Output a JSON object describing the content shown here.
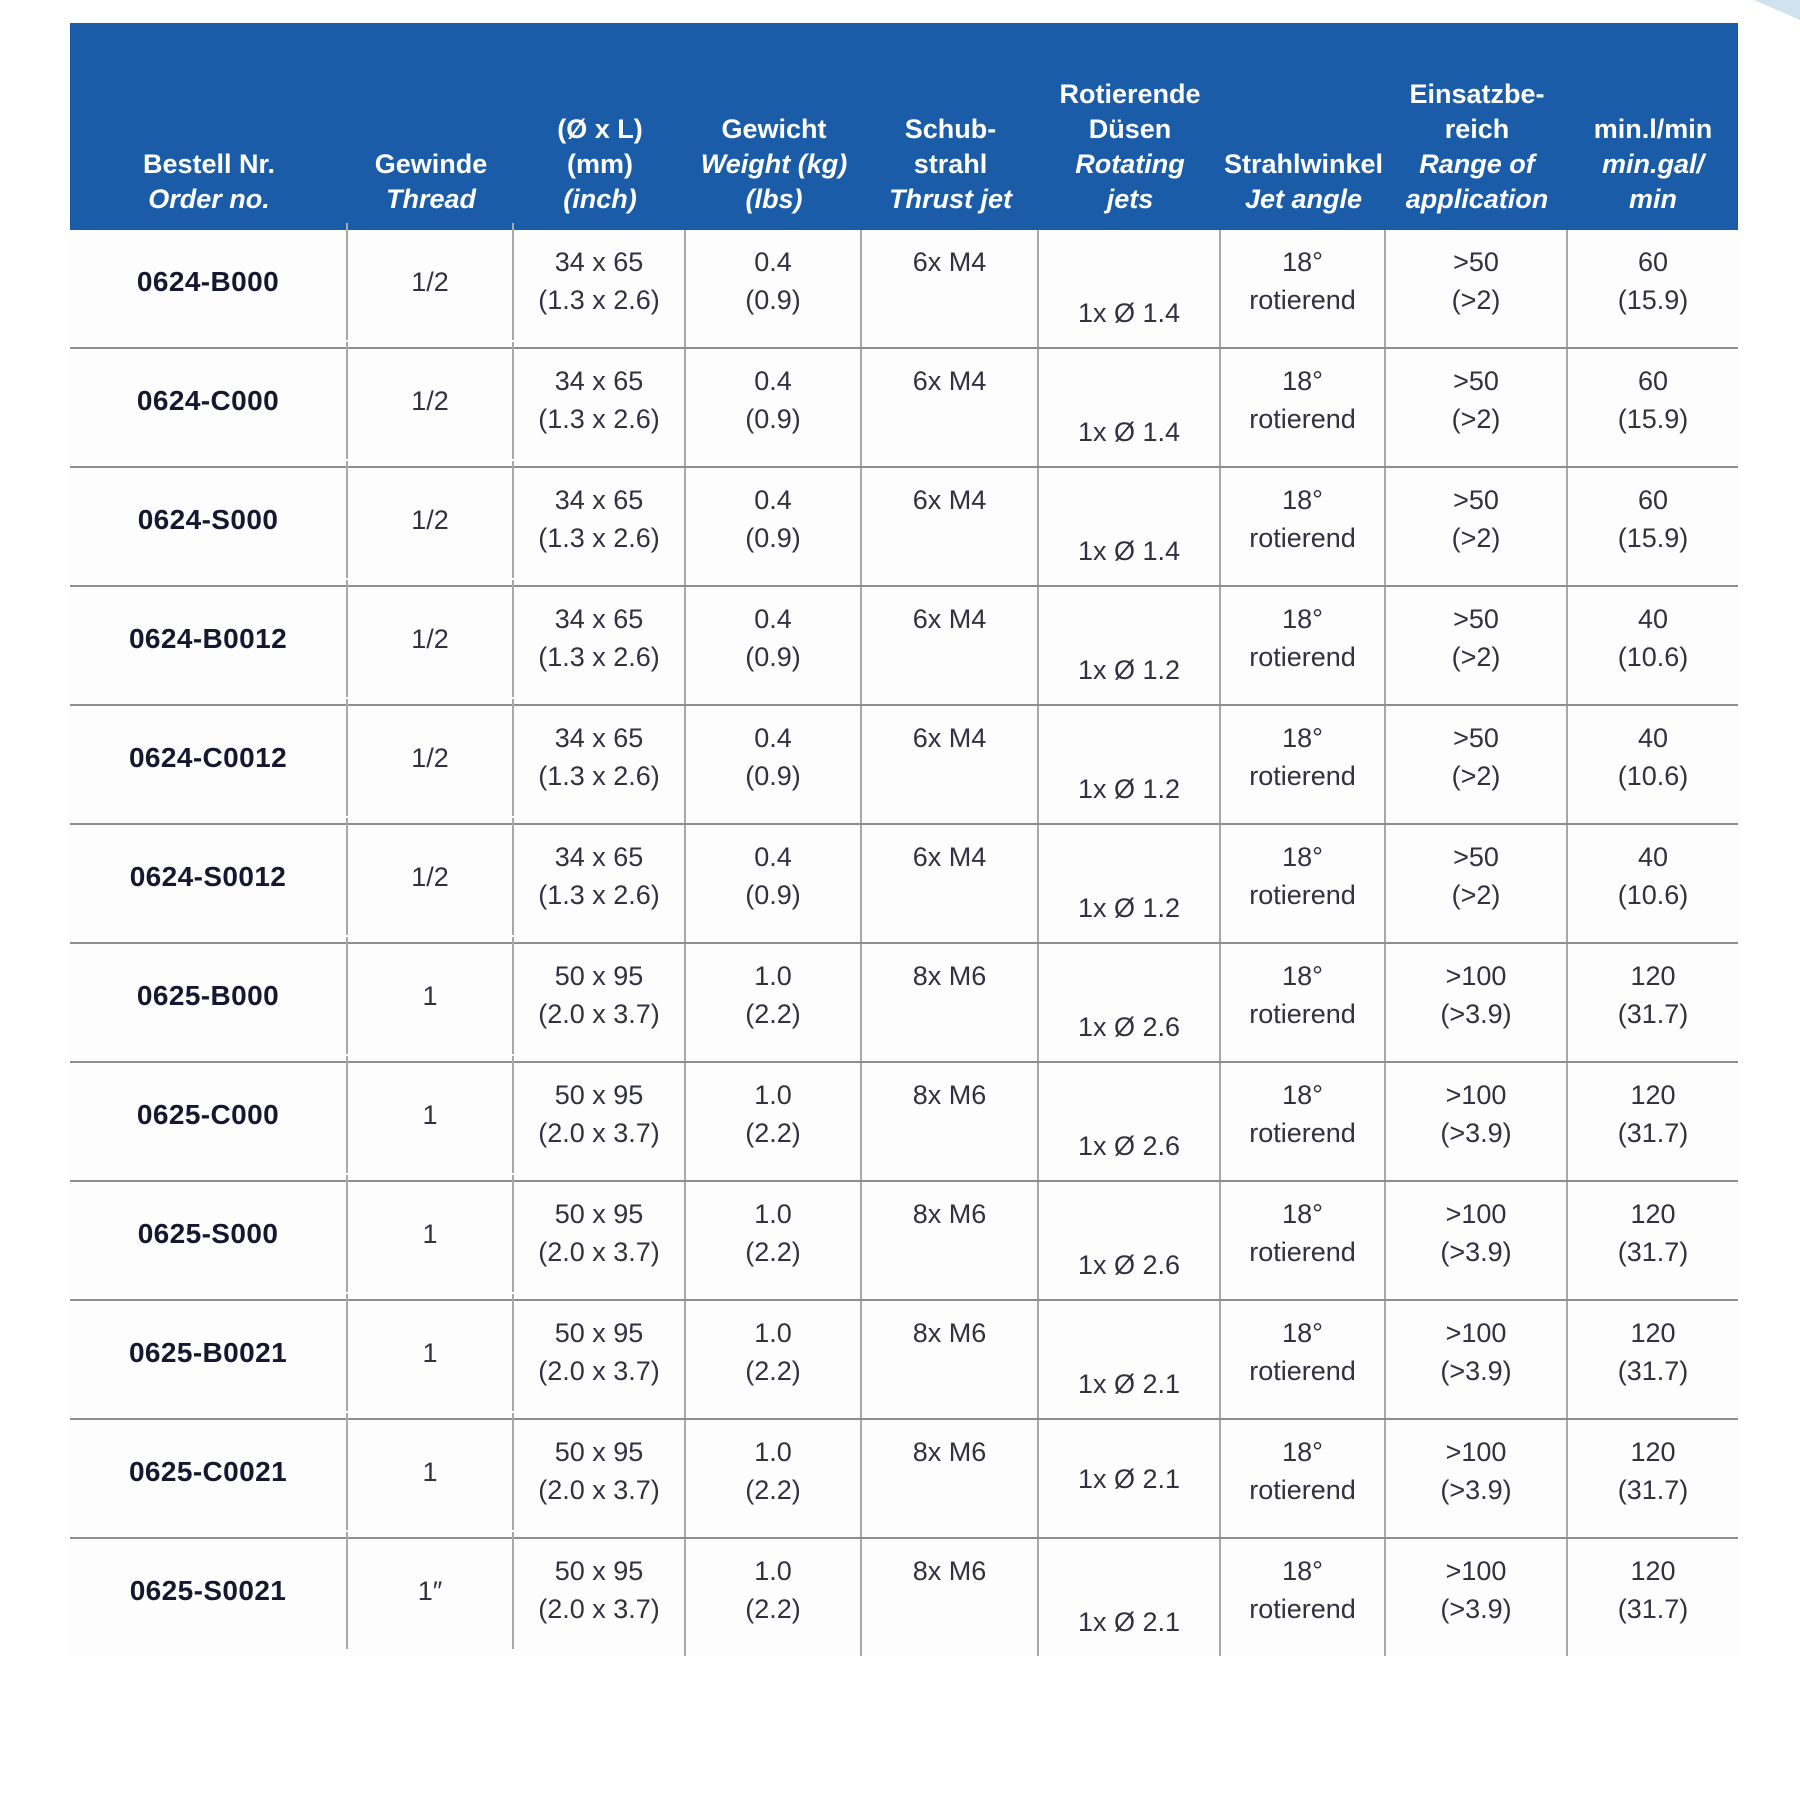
{
  "colors": {
    "header_bg": "#1b5ca8",
    "header_text": "#ffffff",
    "row_separator": "#8e8e8e",
    "column_separator": "#a8a8a8",
    "body_text": "#31313f",
    "order_no_text": "#17172f"
  },
  "table": {
    "columns": [
      {
        "key": "order-no",
        "lines": [
          {
            "t": "Bestell Nr.",
            "it": false
          },
          {
            "t": "Order no.",
            "it": true
          }
        ]
      },
      {
        "key": "thread",
        "lines": [
          {
            "t": "Gewinde",
            "it": false
          },
          {
            "t": "Thread",
            "it": true
          }
        ]
      },
      {
        "key": "dimensions",
        "lines": [
          {
            "t": "(Ø x L)",
            "it": false
          },
          {
            "t": "(mm)",
            "it": false
          },
          {
            "t": "(inch)",
            "it": true
          }
        ]
      },
      {
        "key": "weight",
        "lines": [
          {
            "t": "Gewicht",
            "it": false
          },
          {
            "t": "Weight (kg)",
            "it": true
          },
          {
            "t": "(lbs)",
            "it": true
          }
        ]
      },
      {
        "key": "thrust-jet",
        "lines": [
          {
            "t": "Schub-",
            "it": false
          },
          {
            "t": "strahl",
            "it": false
          },
          {
            "t": "Thrust jet",
            "it": true
          }
        ]
      },
      {
        "key": "rotating-jets",
        "lines": [
          {
            "t": "Rotierende",
            "it": false
          },
          {
            "t": "Düsen",
            "it": false
          },
          {
            "t": "Rotating",
            "it": true
          },
          {
            "t": "jets",
            "it": true
          }
        ]
      },
      {
        "key": "jet-angle",
        "lines": [
          {
            "t": "Strahlwinkel",
            "it": false
          },
          {
            "t": "Jet angle",
            "it": true
          }
        ]
      },
      {
        "key": "range",
        "lines": [
          {
            "t": "Einsatzbe-",
            "it": false
          },
          {
            "t": "reich",
            "it": false
          },
          {
            "t": "Range of",
            "it": true
          },
          {
            "t": "application",
            "it": true
          }
        ]
      },
      {
        "key": "flow",
        "lines": [
          {
            "t": "min.l/min",
            "it": false
          },
          {
            "t": "min.gal/",
            "it": true
          },
          {
            "t": "min",
            "it": true
          }
        ]
      }
    ],
    "rows": [
      {
        "order_no": "0624-B000",
        "thread": "1/2",
        "dim": [
          "34 x 65",
          "(1.3 x 2.6)"
        ],
        "weight": [
          "0.4",
          "(0.9)"
        ],
        "thrust": "6x M4",
        "jets": "1x Ø 1.4",
        "jets_align": "bottom",
        "angle": [
          "18°",
          "rotierend"
        ],
        "range": [
          ">50",
          "(>2)"
        ],
        "flow": [
          "60",
          "(15.9)"
        ]
      },
      {
        "order_no": "0624-C000",
        "thread": "1/2",
        "dim": [
          "34 x 65",
          "(1.3 x 2.6)"
        ],
        "weight": [
          "0.4",
          "(0.9)"
        ],
        "thrust": "6x M4",
        "jets": "1x Ø 1.4",
        "jets_align": "bottom",
        "angle": [
          "18°",
          "rotierend"
        ],
        "range": [
          ">50",
          "(>2)"
        ],
        "flow": [
          "60",
          "(15.9)"
        ]
      },
      {
        "order_no": "0624-S000",
        "thread": "1/2",
        "dim": [
          "34 x 65",
          "(1.3 x 2.6)"
        ],
        "weight": [
          "0.4",
          "(0.9)"
        ],
        "thrust": "6x M4",
        "jets": "1x Ø 1.4",
        "jets_align": "bottom",
        "angle": [
          "18°",
          "rotierend"
        ],
        "range": [
          ">50",
          "(>2)"
        ],
        "flow": [
          "60",
          "(15.9)"
        ]
      },
      {
        "order_no": "0624-B0012",
        "thread": "1/2",
        "dim": [
          "34 x 65",
          "(1.3 x 2.6)"
        ],
        "weight": [
          "0.4",
          "(0.9)"
        ],
        "thrust": "6x M4",
        "jets": "1x Ø 1.2",
        "jets_align": "bottom",
        "angle": [
          "18°",
          "rotierend"
        ],
        "range": [
          ">50",
          "(>2)"
        ],
        "flow": [
          "40",
          "(10.6)"
        ]
      },
      {
        "order_no": "0624-C0012",
        "thread": "1/2",
        "dim": [
          "34 x 65",
          "(1.3 x 2.6)"
        ],
        "weight": [
          "0.4",
          "(0.9)"
        ],
        "thrust": "6x M4",
        "jets": "1x Ø 1.2",
        "jets_align": "bottom",
        "angle": [
          "18°",
          "rotierend"
        ],
        "range": [
          ">50",
          "(>2)"
        ],
        "flow": [
          "40",
          "(10.6)"
        ]
      },
      {
        "order_no": "0624-S0012",
        "thread": "1/2",
        "dim": [
          "34 x 65",
          "(1.3 x 2.6)"
        ],
        "weight": [
          "0.4",
          "(0.9)"
        ],
        "thrust": "6x M4",
        "jets": "1x Ø 1.2",
        "jets_align": "bottom",
        "angle": [
          "18°",
          "rotierend"
        ],
        "range": [
          ">50",
          "(>2)"
        ],
        "flow": [
          "40",
          "(10.6)"
        ]
      },
      {
        "order_no": "0625-B000",
        "thread": "1",
        "dim": [
          "50 x 95",
          "(2.0 x 3.7)"
        ],
        "weight": [
          "1.0",
          "(2.2)"
        ],
        "thrust": "8x M6",
        "jets": "1x Ø 2.6",
        "jets_align": "bottom",
        "angle": [
          "18°",
          "rotierend"
        ],
        "range": [
          ">100",
          "(>3.9)"
        ],
        "flow": [
          "120",
          "(31.7)"
        ]
      },
      {
        "order_no": "0625-C000",
        "thread": "1",
        "dim": [
          "50 x 95",
          "(2.0 x 3.7)"
        ],
        "weight": [
          "1.0",
          "(2.2)"
        ],
        "thrust": "8x M6",
        "jets": "1x Ø 2.6",
        "jets_align": "bottom",
        "angle": [
          "18°",
          "rotierend"
        ],
        "range": [
          ">100",
          "(>3.9)"
        ],
        "flow": [
          "120",
          "(31.7)"
        ]
      },
      {
        "order_no": "0625-S000",
        "thread": "1",
        "dim": [
          "50 x 95",
          "(2.0 x 3.7)"
        ],
        "weight": [
          "1.0",
          "(2.2)"
        ],
        "thrust": "8x M6",
        "jets": "1x Ø 2.6",
        "jets_align": "bottom",
        "angle": [
          "18°",
          "rotierend"
        ],
        "range": [
          ">100",
          "(>3.9)"
        ],
        "flow": [
          "120",
          "(31.7)"
        ]
      },
      {
        "order_no": "0625-B0021",
        "thread": "1",
        "dim": [
          "50 x 95",
          "(2.0 x 3.7)"
        ],
        "weight": [
          "1.0",
          "(2.2)"
        ],
        "thrust": "8x M6",
        "jets": "1x Ø 2.1",
        "jets_align": "bottom",
        "angle": [
          "18°",
          "rotierend"
        ],
        "range": [
          ">100",
          "(>3.9)"
        ],
        "flow": [
          "120",
          "(31.7)"
        ]
      },
      {
        "order_no": "0625-C0021",
        "thread": "1",
        "dim": [
          "50 x 95",
          "(2.0 x 3.7)"
        ],
        "weight": [
          "1.0",
          "(2.2)"
        ],
        "thrust": "8x M6",
        "jets": "1x Ø 2.1",
        "jets_align": "middle",
        "angle": [
          "18°",
          "rotierend"
        ],
        "range": [
          ">100",
          "(>3.9)"
        ],
        "flow": [
          "120",
          "(31.7)"
        ]
      },
      {
        "order_no": "0625-S0021",
        "thread": "1″",
        "dim": [
          "50 x 95",
          "(2.0 x 3.7)"
        ],
        "weight": [
          "1.0",
          "(2.2)"
        ],
        "thrust": "8x M6",
        "jets": "1x Ø 2.1",
        "jets_align": "bottom",
        "angle": [
          "18°",
          "rotierend"
        ],
        "range": [
          ">100",
          "(>3.9)"
        ],
        "flow": [
          "120",
          "(31.7)"
        ]
      }
    ]
  }
}
